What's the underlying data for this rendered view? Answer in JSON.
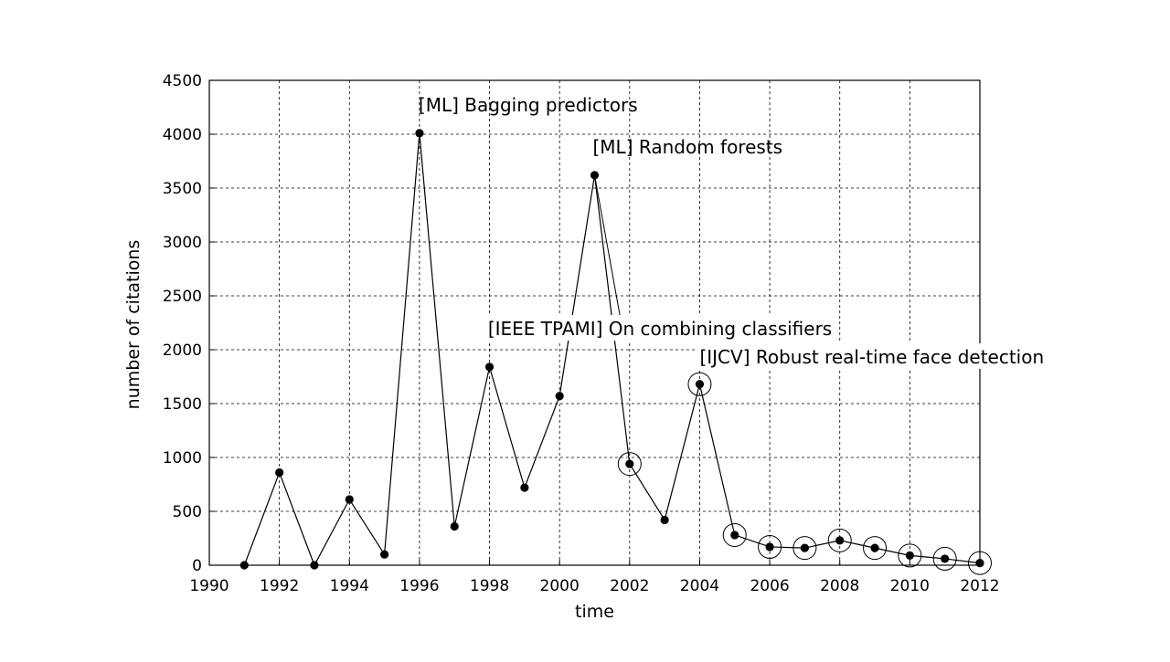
{
  "chart_data": {
    "type": "line",
    "xlabel": "time",
    "ylabel": "number of citations",
    "xlim": [
      1990,
      2012
    ],
    "ylim": [
      0,
      4500
    ],
    "x_ticks": [
      "1990",
      "1992",
      "1994",
      "1996",
      "1998",
      "2000",
      "2002",
      "2004",
      "2006",
      "2008",
      "2010",
      "2012"
    ],
    "y_ticks": [
      "0",
      "500",
      "1000",
      "1500",
      "2000",
      "2500",
      "3000",
      "3500",
      "4000",
      "4500"
    ],
    "grid": true,
    "series": [
      {
        "x": [
          1991,
          1992,
          1993,
          1994,
          1995,
          1996,
          1997,
          1998,
          1999,
          2000,
          2001,
          2002,
          2003,
          2004,
          2005,
          2006,
          2007,
          2008,
          2009,
          2010,
          2011,
          2012
        ],
        "y": [
          0,
          860,
          0,
          610,
          100,
          4010,
          360,
          1840,
          720,
          1570,
          3620,
          940,
          420,
          1680,
          280,
          170,
          160,
          230,
          160,
          90,
          60,
          20
        ],
        "circled_years": [
          2002,
          2004,
          2005,
          2006,
          2007,
          2008,
          2009,
          2010,
          2011,
          2012
        ]
      }
    ],
    "annotations": [
      {
        "text": "[ML] Bagging predictors",
        "x": 1996,
        "y": 4010
      },
      {
        "text": "[ML] Random forests",
        "x": 2001,
        "y": 3620
      },
      {
        "text": "[IEEE TPAMI] On combining classifiers",
        "x": 2002,
        "y": 940
      },
      {
        "text": "[IJCV] Robust real-time face detection",
        "x": 2004,
        "y": 1680
      }
    ],
    "colors": {
      "line": "#000000",
      "grid": "#000000",
      "background": "#ffffff"
    }
  }
}
